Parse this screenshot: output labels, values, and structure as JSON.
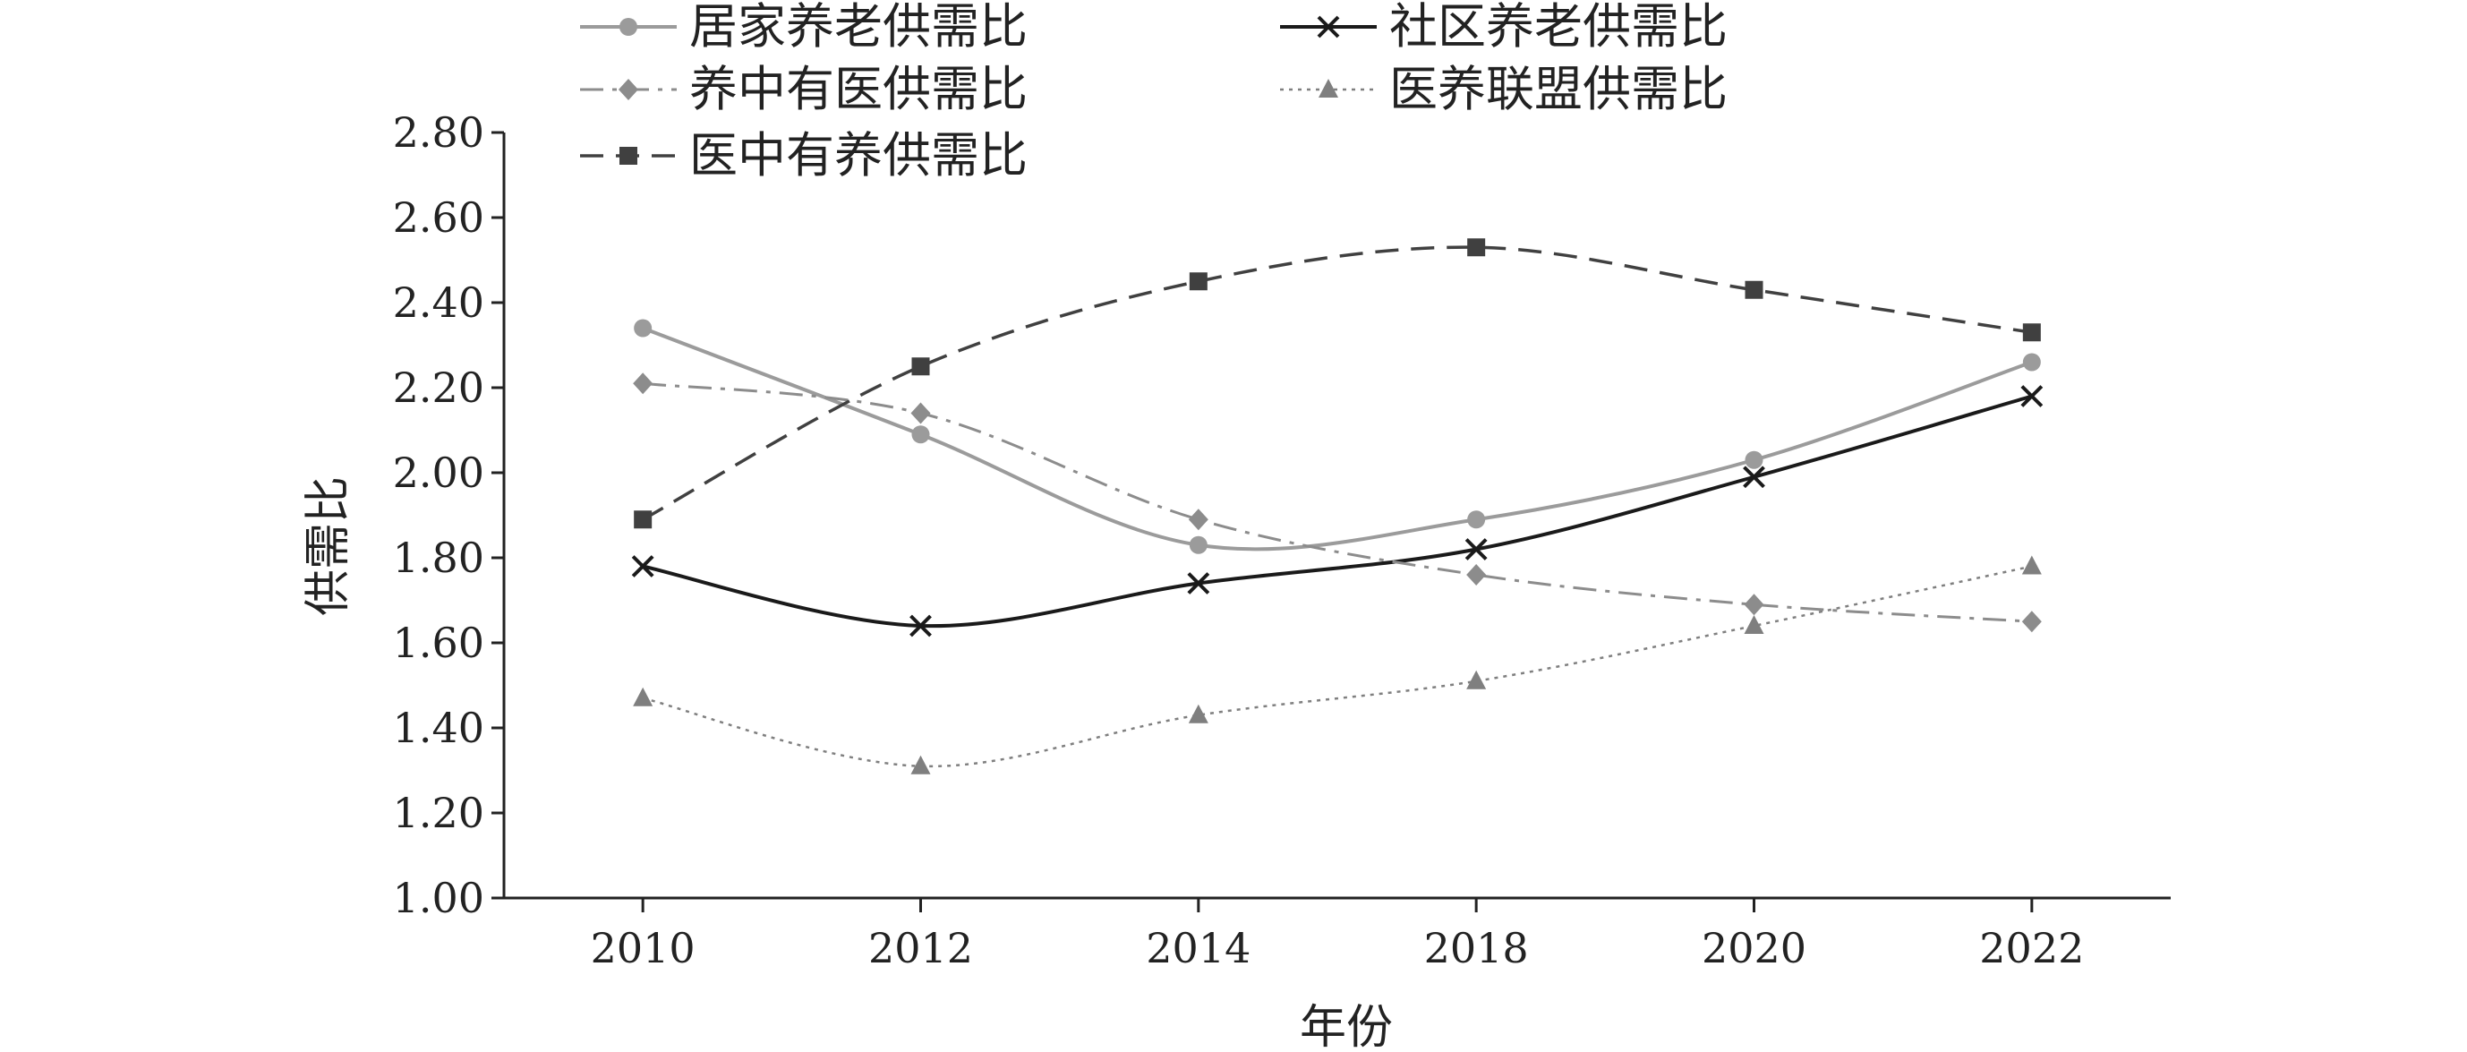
{
  "chart_data": {
    "type": "line",
    "title": "",
    "xlabel": "年份",
    "ylabel": "供需比",
    "categories": [
      "2010",
      "2012",
      "2014",
      "2018",
      "2020",
      "2022"
    ],
    "ylim": [
      1.0,
      2.8
    ],
    "yticks": [
      "1.00",
      "1.20",
      "1.40",
      "1.60",
      "1.80",
      "2.00",
      "2.20",
      "2.40",
      "2.60",
      "2.80"
    ],
    "grid": false,
    "legend_position": "top",
    "series": [
      {
        "name": "居家养老供需比",
        "values": [
          2.34,
          2.09,
          1.83,
          1.89,
          2.03,
          2.26
        ],
        "color": "#9b9b9b",
        "marker": "circle",
        "dash": "solid",
        "smooth": true
      },
      {
        "name": "社区养老供需比",
        "values": [
          1.78,
          1.64,
          1.74,
          1.82,
          1.99,
          2.18
        ],
        "color": "#1a1a1a",
        "marker": "x",
        "dash": "solid",
        "smooth": true
      },
      {
        "name": "养中有医供需比",
        "values": [
          2.21,
          2.14,
          1.89,
          1.76,
          1.69,
          1.65
        ],
        "color": "#8c8c8c",
        "marker": "diamond",
        "dash": "dashdot",
        "smooth": true
      },
      {
        "name": "医养联盟供需比",
        "values": [
          1.47,
          1.31,
          1.43,
          1.51,
          1.64,
          1.78
        ],
        "color": "#7f7f7f",
        "marker": "triangle",
        "dash": "dotted",
        "smooth": true
      },
      {
        "name": "医中有养供需比",
        "values": [
          1.89,
          2.25,
          2.45,
          2.53,
          2.43,
          2.33
        ],
        "color": "#404040",
        "marker": "square",
        "dash": "dashed",
        "smooth": true
      }
    ]
  }
}
